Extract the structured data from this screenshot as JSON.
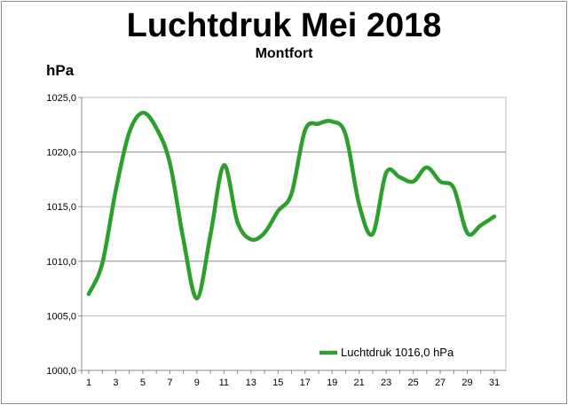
{
  "chart_data": {
    "type": "line",
    "title": "Luchtdruk Mei 2018",
    "subtitle": "Montfort",
    "ylabel": "hPa",
    "xlabel": "",
    "x": [
      1,
      2,
      3,
      4,
      5,
      6,
      7,
      8,
      9,
      10,
      11,
      12,
      13,
      14,
      15,
      16,
      17,
      18,
      19,
      20,
      21,
      22,
      23,
      24,
      25,
      26,
      27,
      28,
      29,
      30,
      31
    ],
    "x_tick_labels": [
      "1",
      "3",
      "5",
      "7",
      "9",
      "11",
      "13",
      "15",
      "17",
      "19",
      "21",
      "23",
      "25",
      "27",
      "29",
      "31"
    ],
    "y_tick_labels": [
      "1000,0",
      "1005,0",
      "1010,0",
      "1015,0",
      "1020,0",
      "1025,0"
    ],
    "ylim": [
      1000,
      1025
    ],
    "grid": true,
    "legend_position": "bottom-right",
    "series": [
      {
        "name": "Luchtdruk 1016,0 hPa",
        "color": "#2ca02c",
        "values": [
          1007.0,
          1009.8,
          1016.5,
          1021.8,
          1023.6,
          1022.2,
          1019.0,
          1012.0,
          1006.6,
          1012.4,
          1018.8,
          1013.6,
          1012.0,
          1012.6,
          1014.6,
          1016.2,
          1022.0,
          1022.6,
          1022.8,
          1021.6,
          1015.2,
          1012.5,
          1018.1,
          1017.7,
          1017.3,
          1018.6,
          1017.3,
          1016.7,
          1012.6,
          1013.3,
          1014.1
        ]
      }
    ]
  }
}
